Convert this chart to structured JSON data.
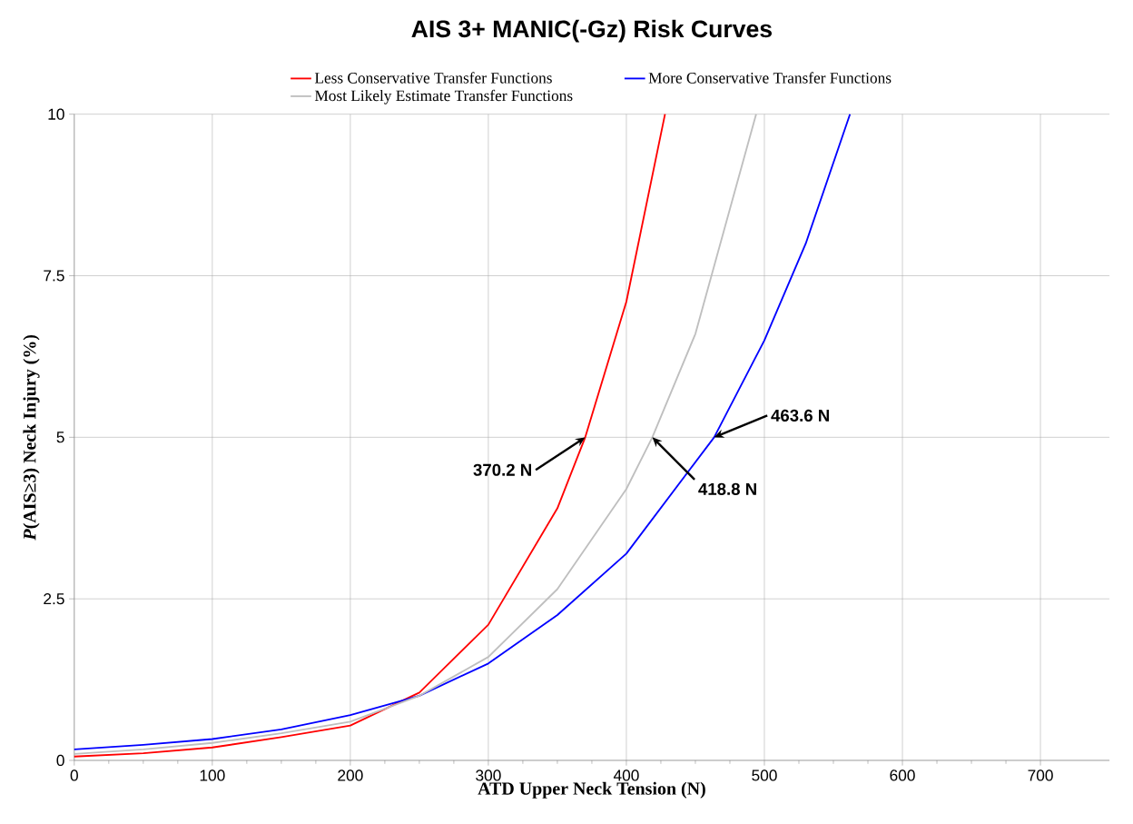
{
  "chart_data": {
    "type": "line",
    "title": "AIS 3+ MANIC(-Gz) Risk Curves",
    "xlabel": "ATD Upper Neck Tension (N)",
    "ylabel": "*P*(AIS≥3) Neck Injury (%)",
    "xlim": [
      0,
      750
    ],
    "ylim": [
      0,
      10
    ],
    "xticks": [
      0,
      100,
      200,
      300,
      400,
      500,
      600,
      700
    ],
    "yticks": [
      0,
      2.5,
      5,
      7.5,
      10
    ],
    "grid": true,
    "legend": "top",
    "marker": "none",
    "line_style": "solid",
    "series": [
      {
        "name": "Less Conservative Transfer Functions",
        "color": "#ff0000",
        "x": [
          0,
          50,
          100,
          150,
          200,
          250,
          300,
          350,
          370.2,
          400,
          428
        ],
        "values": [
          0.06,
          0.11,
          0.2,
          0.36,
          0.54,
          1.05,
          2.1,
          3.9,
          5,
          7.1,
          10
        ]
      },
      {
        "name": "More Conservative Transfer Functions",
        "color": "#0000ff",
        "x": [
          0,
          50,
          100,
          150,
          200,
          250,
          300,
          350,
          400,
          463.6,
          500,
          530,
          562
        ],
        "values": [
          0.17,
          0.24,
          0.33,
          0.48,
          0.7,
          1.0,
          1.5,
          2.25,
          3.2,
          5,
          6.5,
          8.0,
          10
        ]
      },
      {
        "name": "Most Likely Estimate Transfer Functions",
        "color": "#bfbfbf",
        "x": [
          0,
          50,
          100,
          150,
          200,
          250,
          300,
          350,
          400,
          418.8,
          450,
          494
        ],
        "values": [
          0.1,
          0.17,
          0.27,
          0.42,
          0.6,
          1.0,
          1.6,
          2.65,
          4.2,
          5,
          6.6,
          10
        ]
      }
    ],
    "annotations": [
      {
        "text": "370.2 N",
        "x": 370.2,
        "y": 5
      },
      {
        "text": "418.8 N",
        "x": 418.8,
        "y": 5
      },
      {
        "text": "463.6 N",
        "x": 463.6,
        "y": 5
      }
    ]
  }
}
